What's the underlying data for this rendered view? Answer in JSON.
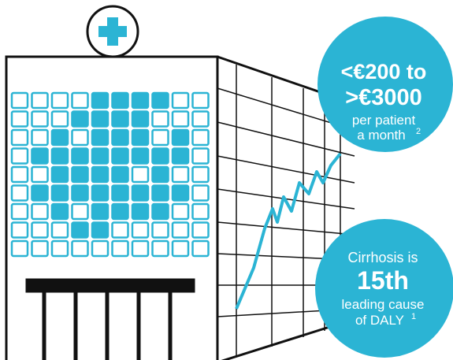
{
  "callouts": [
    {
      "lines": [
        "<€200 to",
        ">€3000",
        "per patient",
        "a month"
      ],
      "note": "2"
    },
    {
      "lines": [
        "Cirrhosis is",
        "15th",
        "leading cause",
        "of DALY"
      ],
      "note": "1"
    }
  ]
}
